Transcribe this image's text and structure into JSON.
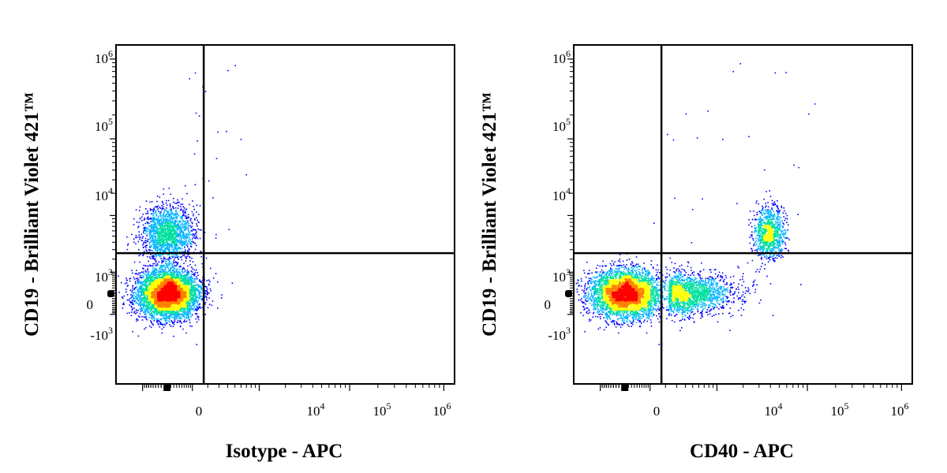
{
  "chart_data": [
    {
      "type": "scatter",
      "plot_style": "density-colored dot plot with quadrant gates",
      "xlabel": "Isotype - APC",
      "ylabel": "CD19 - Brilliant Violet 421™",
      "x_scale": "biexponential",
      "y_scale": "biexponential",
      "xlim": [
        -3000,
        1300000
      ],
      "ylim": [
        -15000,
        1500000
      ],
      "x_ticks": [
        {
          "value": 0,
          "base": "0",
          "exp": ""
        },
        {
          "value": 10000,
          "base": "10",
          "exp": "4"
        },
        {
          "value": 100000,
          "base": "10",
          "exp": "5"
        },
        {
          "value": 1000000,
          "base": "10",
          "exp": "6"
        }
      ],
      "y_ticks": [
        {
          "value": -1000,
          "base": "-10",
          "exp": "3"
        },
        {
          "value": 0,
          "base": "0",
          "exp": ""
        },
        {
          "value": 1000,
          "base": "10",
          "exp": "3"
        },
        {
          "value": 10000,
          "base": "10",
          "exp": "4"
        },
        {
          "value": 100000,
          "base": "10",
          "exp": "5"
        },
        {
          "value": 1000000,
          "base": "10",
          "exp": "6"
        }
      ],
      "gate": {
        "x": 1700,
        "y": 2600
      },
      "populations": [
        {
          "name": "",
          "x_center": 0,
          "y_center": 0,
          "relative_size": 0.76
        },
        {
          "name": "",
          "x_center": 0,
          "y_center": 5600,
          "relative_size": 0.24
        }
      ],
      "colormap": [
        "#0000ff",
        "#00b4ff",
        "#00e0a0",
        "#ffff00",
        "#ff8000",
        "#ff0000"
      ]
    },
    {
      "type": "scatter",
      "plot_style": "density-colored dot plot with quadrant gates",
      "xlabel": "CD40 - APC",
      "ylabel": "CD19 - Brilliant Violet 421™",
      "x_scale": "biexponential",
      "y_scale": "biexponential",
      "xlim": [
        -3000,
        1300000
      ],
      "ylim": [
        -15000,
        1500000
      ],
      "x_ticks": [
        {
          "value": 0,
          "base": "0",
          "exp": ""
        },
        {
          "value": 10000,
          "base": "10",
          "exp": "4"
        },
        {
          "value": 100000,
          "base": "10",
          "exp": "5"
        },
        {
          "value": 1000000,
          "base": "10",
          "exp": "6"
        }
      ],
      "y_ticks": [
        {
          "value": -1000,
          "base": "-10",
          "exp": "3"
        },
        {
          "value": 0,
          "base": "0",
          "exp": ""
        },
        {
          "value": 1000,
          "base": "10",
          "exp": "3"
        },
        {
          "value": 10000,
          "base": "10",
          "exp": "4"
        },
        {
          "value": 100000,
          "base": "10",
          "exp": "5"
        },
        {
          "value": 1000000,
          "base": "10",
          "exp": "6"
        }
      ],
      "gate": {
        "x": 1700,
        "y": 2600
      },
      "populations": [
        {
          "name": "",
          "x_center": 0,
          "y_center": 0,
          "relative_size": 0.62
        },
        {
          "name": "",
          "x_center": 2800,
          "y_center": 0,
          "relative_size": 0.24
        },
        {
          "name": "",
          "x_center": 38000,
          "y_center": 5600,
          "relative_size": 0.14
        }
      ],
      "colormap": [
        "#0000ff",
        "#00b4ff",
        "#00e0a0",
        "#ffff00",
        "#ff8000",
        "#ff0000"
      ]
    }
  ]
}
